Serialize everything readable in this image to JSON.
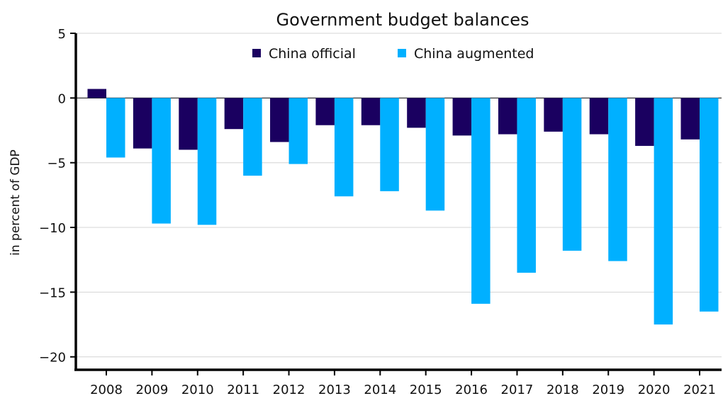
{
  "chart_data": {
    "type": "bar",
    "title": "Government budget balances",
    "xlabel": "",
    "ylabel": "in percent of GDP",
    "categories": [
      "2008",
      "2009",
      "2010",
      "2011",
      "2012",
      "2013",
      "2014",
      "2015",
      "2016",
      "2017",
      "2018",
      "2019",
      "2020",
      "2021"
    ],
    "series": [
      {
        "name": "China official",
        "color": "#1a0060",
        "values": [
          0.7,
          -3.9,
          -4.0,
          -2.4,
          -3.4,
          -2.1,
          -2.1,
          -2.3,
          -2.9,
          -2.8,
          -2.6,
          -2.8,
          -3.7,
          -3.2
        ]
      },
      {
        "name": "China augmented",
        "color": "#00b0ff",
        "values": [
          -4.6,
          -9.7,
          -9.8,
          -6.0,
          -5.1,
          -7.6,
          -7.2,
          -8.7,
          -15.9,
          -13.5,
          -11.8,
          -12.6,
          -17.5,
          -16.5
        ]
      }
    ],
    "ylim": [
      -21,
      5
    ],
    "yticks": [
      5,
      0,
      -5,
      -10,
      -15,
      -20
    ],
    "ytick_labels": [
      "5",
      "0",
      "−5",
      "−10",
      "−15",
      "−20"
    ],
    "grid": true,
    "legend_position": "top-center"
  }
}
